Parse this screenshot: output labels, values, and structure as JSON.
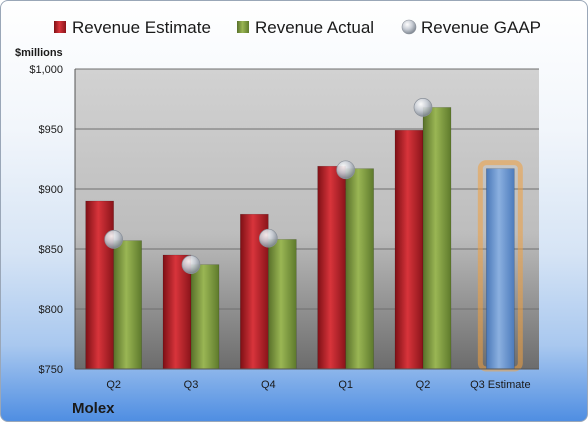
{
  "chart_data": {
    "type": "bar",
    "unit_label": "$millions",
    "company": "Molex",
    "categories": [
      "Q2",
      "Q3",
      "Q4",
      "Q1",
      "Q2",
      "Q3 Estimate"
    ],
    "series": [
      {
        "name": "Revenue Estimate",
        "color": "#c0232b",
        "values": [
          890,
          845,
          879,
          919,
          949,
          null
        ]
      },
      {
        "name": "Revenue Actual",
        "color": "#7f9a3e",
        "values": [
          857,
          837,
          858,
          917,
          968,
          null
        ]
      },
      {
        "name": "Revenue GAAP",
        "color": "#b8bec8",
        "style": "marker",
        "values": [
          858,
          837,
          859,
          916,
          968,
          null
        ]
      }
    ],
    "estimate_bar": {
      "category": "Q3 Estimate",
      "value": 917,
      "color": "#6d97d0",
      "glow": "#f0a040"
    },
    "y_ticks": [
      750,
      800,
      850,
      900,
      950,
      1000
    ],
    "y_tick_labels": [
      "$750",
      "$800",
      "$850",
      "$900",
      "$950",
      "$1,000"
    ],
    "ylim": [
      750,
      1000
    ],
    "grid": true,
    "legend": "top"
  }
}
